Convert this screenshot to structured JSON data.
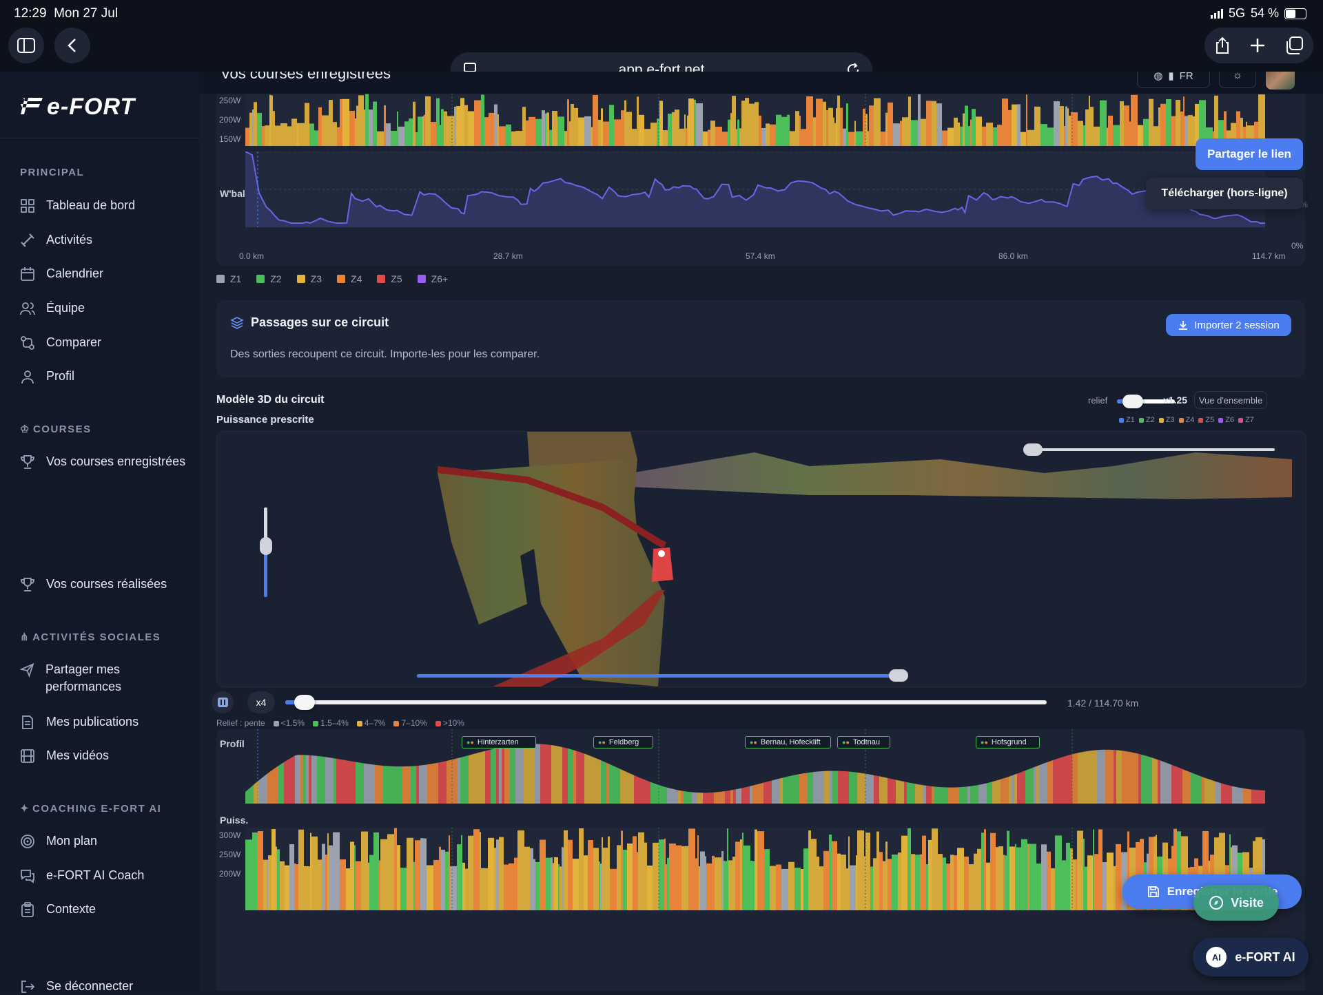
{
  "status": {
    "time": "12:29",
    "date": "Mon 27 Jul",
    "network": "5G",
    "battery": "54 %"
  },
  "browser": {
    "url": "app.e-fort.net"
  },
  "app": {
    "logo": "e-FORT",
    "header_title": "Vos courses enregistrées",
    "lang": "FR"
  },
  "sidebar": {
    "sections": [
      {
        "title": "PRINCIPAL",
        "items": [
          "Tableau de bord",
          "Activités",
          "Calendrier",
          "Équipe",
          "Comparer",
          "Profil"
        ]
      },
      {
        "title": "COURSES",
        "items": [
          "Vos courses enregistrées",
          "Vos courses réalisées"
        ]
      },
      {
        "title": "ACTIVITÉS SOCIALES",
        "items": [
          "Partager mes performances",
          "Mes publications",
          "Mes vidéos"
        ]
      },
      {
        "title": "COACHING E-FORT AI",
        "items": [
          "Mon plan",
          "e-FORT AI Coach",
          "Contexte"
        ]
      }
    ],
    "logout": "Se déconnecter"
  },
  "top_chart": {
    "y_ticks": [
      "250W",
      "200W",
      "150W"
    ],
    "wbal_label": "W'bal",
    "wbal_right_ticks": [
      "50%",
      "0%"
    ],
    "x_ticks": [
      "0.0 km",
      "28.7 km",
      "57.4 km",
      "86.0 km",
      "114.7 km"
    ],
    "legend": [
      {
        "label": "Z1",
        "color": "#9ca3af"
      },
      {
        "label": "Z2",
        "color": "#4cbf5a"
      },
      {
        "label": "Z3",
        "color": "#e2b33a"
      },
      {
        "label": "Z4",
        "color": "#e8843a"
      },
      {
        "label": "Z5",
        "color": "#e04b4b"
      },
      {
        "label": "Z6+",
        "color": "#9b5cf0"
      }
    ]
  },
  "share_menu": {
    "share": "Partager le lien",
    "download": "Télécharger (hors-ligne)"
  },
  "passages": {
    "title": "Passages sur ce circuit",
    "description": "Des sorties recoupent ce circuit. Importe-les pour les comparer.",
    "import_button": "Importer 2 session"
  },
  "model3d": {
    "title": "Modèle 3D du circuit",
    "relief_label": "relief",
    "relief_value": "x1.25",
    "overview_button": "Vue d'ensemble",
    "subtitle": "Puissance prescrite",
    "zone_legend": [
      {
        "label": "Z1",
        "color": "#4b7cf0"
      },
      {
        "label": "Z2",
        "color": "#4cbf5a"
      },
      {
        "label": "Z3",
        "color": "#e2b33a"
      },
      {
        "label": "Z4",
        "color": "#e8843a"
      },
      {
        "label": "Z5",
        "color": "#e04b4b"
      },
      {
        "label": "Z6",
        "color": "#9b5cf0"
      },
      {
        "label": "Z7",
        "color": "#e0508a"
      }
    ]
  },
  "playback": {
    "speed": "x4",
    "position_text": "1.42 / 114.70 km",
    "progress": 0.012
  },
  "relief_legend": {
    "label": "Relief : pente",
    "items": [
      {
        "label": "<1.5%",
        "color": "#9ca3af"
      },
      {
        "label": "1.5–4%",
        "color": "#4cbf5a"
      },
      {
        "label": "4–7%",
        "color": "#e2b33a"
      },
      {
        "label": "7–10%",
        "color": "#e8843a"
      },
      {
        "label": ">10%",
        "color": "#e04b4b"
      }
    ]
  },
  "profile": {
    "label": "Profil",
    "waypoints": [
      "Hinterzarten",
      "Feldberg",
      "Bernau, Hofecklift",
      "Todtnau",
      "Hofsgrund"
    ]
  },
  "bottom_chart": {
    "label": "Puiss.",
    "y_ticks": [
      "300W",
      "250W",
      "200W"
    ]
  },
  "floating": {
    "save_button": "Enregistrer la sortie",
    "visit_button": "Visite",
    "ai_button": "e-FORT AI"
  }
}
